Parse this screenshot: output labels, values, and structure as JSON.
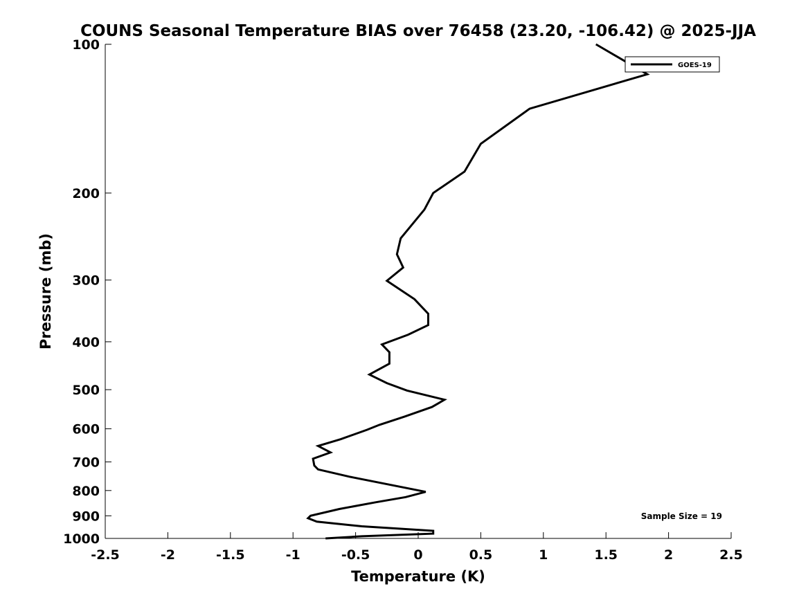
{
  "chart_data": {
    "type": "line",
    "title": "COUNS Seasonal Temperature BIAS over 76458 (23.20, -106.42) @ 2025-JJA",
    "xlabel": "Temperature (K)",
    "ylabel": "Pressure (mb)",
    "xlim": [
      -2.5,
      2.5
    ],
    "ylim": [
      100,
      1000
    ],
    "yscale": "log",
    "y_reversed": true,
    "grid": false,
    "x_ticks": [
      -2.5,
      -2,
      -1.5,
      -1,
      -0.5,
      0,
      0.5,
      1,
      1.5,
      2,
      2.5
    ],
    "x_tick_labels": [
      "-2.5",
      "-2",
      "-1.5",
      "-1",
      "-0.5",
      "0",
      "0.5",
      "1",
      "1.5",
      "2",
      "2.5"
    ],
    "y_ticks": [
      100,
      200,
      300,
      400,
      500,
      600,
      700,
      800,
      900,
      1000
    ],
    "y_tick_labels": [
      "100",
      "200",
      "300",
      "400",
      "500",
      "600",
      "700",
      "800",
      "900",
      "1000"
    ],
    "legend": {
      "position": "top-right",
      "entries": [
        "GOES-19"
      ]
    },
    "annotation": "Sample Size = 19",
    "series": [
      {
        "name": "GOES-19",
        "color": "#000000",
        "points": [
          {
            "t": 1.42,
            "p": 100
          },
          {
            "t": 1.83,
            "p": 115
          },
          {
            "t": 0.89,
            "p": 135
          },
          {
            "t": 0.5,
            "p": 159
          },
          {
            "t": 0.37,
            "p": 181
          },
          {
            "t": 0.12,
            "p": 200
          },
          {
            "t": 0.05,
            "p": 216
          },
          {
            "t": -0.14,
            "p": 247
          },
          {
            "t": -0.17,
            "p": 266
          },
          {
            "t": -0.12,
            "p": 283
          },
          {
            "t": -0.25,
            "p": 301
          },
          {
            "t": -0.03,
            "p": 328
          },
          {
            "t": 0.08,
            "p": 351
          },
          {
            "t": 0.08,
            "p": 370
          },
          {
            "t": -0.08,
            "p": 387
          },
          {
            "t": -0.29,
            "p": 405
          },
          {
            "t": -0.23,
            "p": 420
          },
          {
            "t": -0.23,
            "p": 443
          },
          {
            "t": -0.39,
            "p": 466
          },
          {
            "t": -0.25,
            "p": 485
          },
          {
            "t": -0.09,
            "p": 502
          },
          {
            "t": 0.21,
            "p": 524
          },
          {
            "t": 0.11,
            "p": 542
          },
          {
            "t": -0.11,
            "p": 567
          },
          {
            "t": -0.31,
            "p": 589
          },
          {
            "t": -0.41,
            "p": 603
          },
          {
            "t": -0.62,
            "p": 630
          },
          {
            "t": -0.8,
            "p": 650
          },
          {
            "t": -0.7,
            "p": 670
          },
          {
            "t": -0.84,
            "p": 690
          },
          {
            "t": -0.83,
            "p": 712
          },
          {
            "t": -0.8,
            "p": 725
          },
          {
            "t": -0.55,
            "p": 750
          },
          {
            "t": 0.06,
            "p": 805
          },
          {
            "t": -0.1,
            "p": 825
          },
          {
            "t": -0.34,
            "p": 845
          },
          {
            "t": -0.63,
            "p": 872
          },
          {
            "t": -0.86,
            "p": 900
          },
          {
            "t": -0.88,
            "p": 910
          },
          {
            "t": -0.81,
            "p": 925
          },
          {
            "t": -0.45,
            "p": 945
          },
          {
            "t": 0.12,
            "p": 965
          },
          {
            "t": 0.12,
            "p": 978
          },
          {
            "t": -0.45,
            "p": 990
          },
          {
            "t": -0.74,
            "p": 1000
          }
        ]
      }
    ]
  }
}
